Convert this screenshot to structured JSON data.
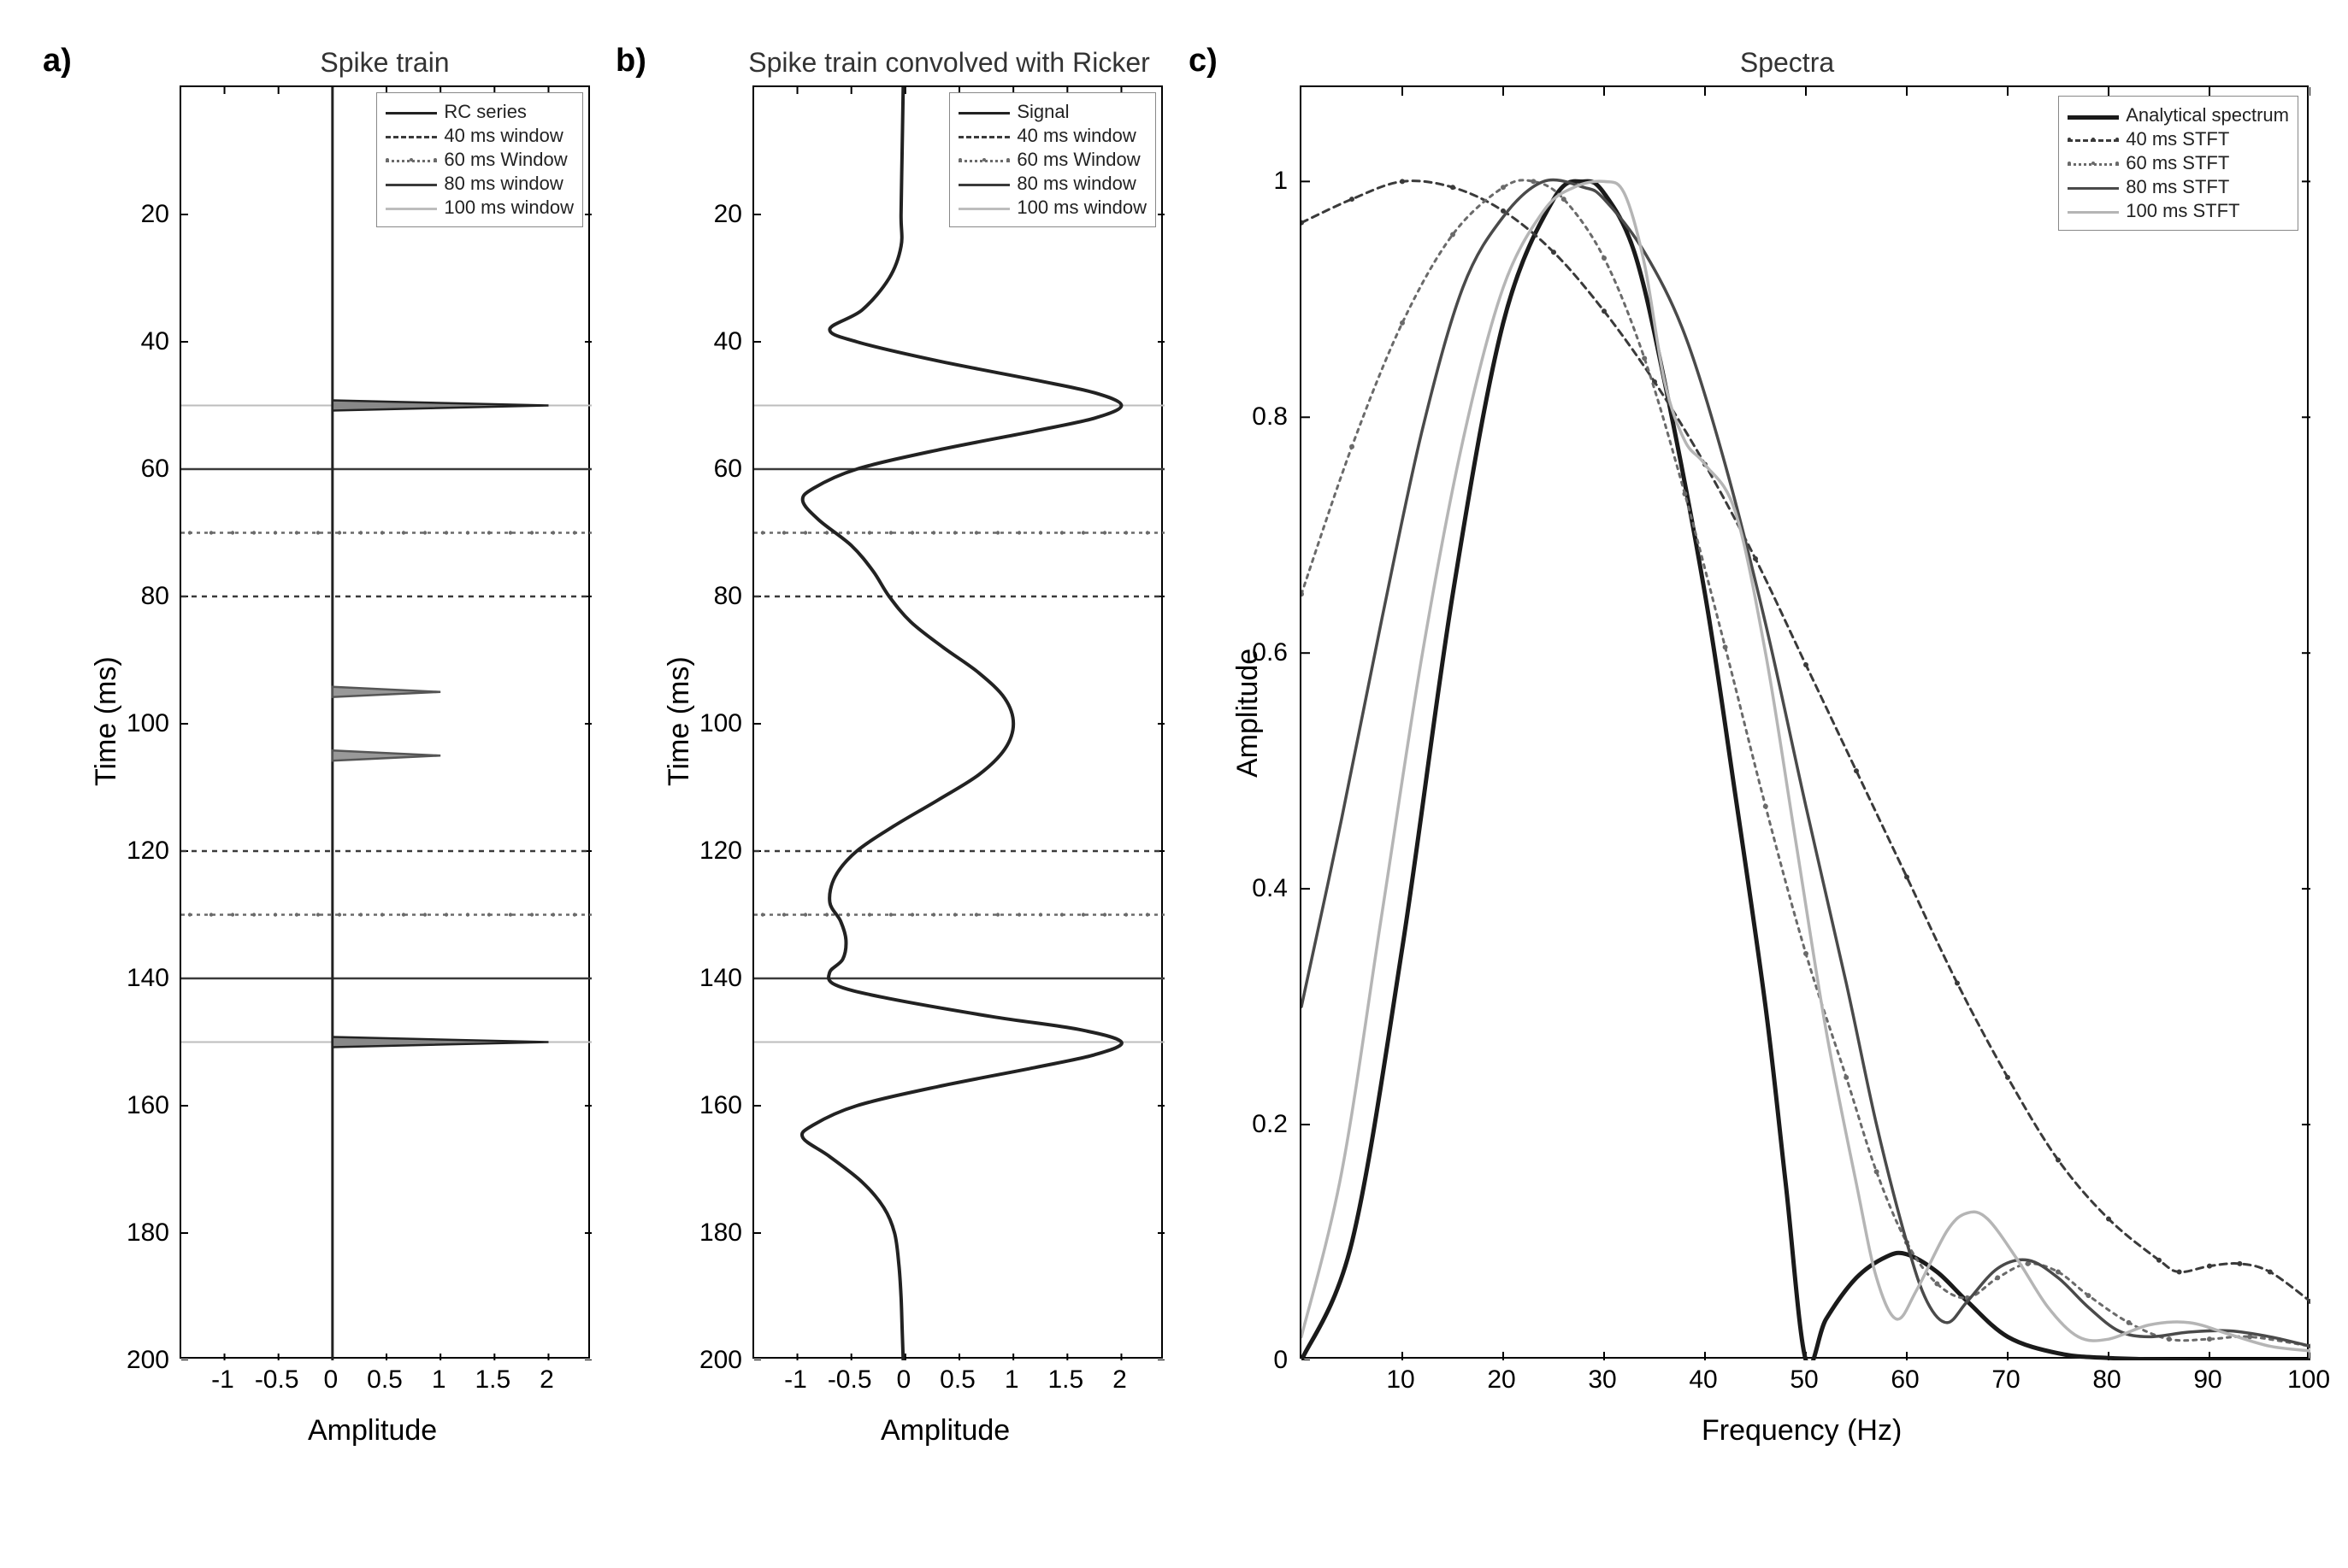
{
  "figure_width": 2746,
  "figure_height": 1835,
  "background_color": "#ffffff",
  "panel_a": {
    "label": "a)",
    "title": "Spike train",
    "xlabel": "Amplitude",
    "ylabel": "Time (ms)",
    "xlim": [
      -1.4,
      2.4
    ],
    "ylim": [
      200,
      0
    ],
    "xticks": [
      -1,
      -0.5,
      0,
      0.5,
      1,
      1.5,
      2
    ],
    "yticks": [
      20,
      40,
      60,
      80,
      100,
      120,
      140,
      160,
      180,
      200
    ],
    "axis_linewidth": 2,
    "tick_fontsize": 30,
    "label_fontsize": 34,
    "title_fontsize": 32,
    "baseline": {
      "x": 0,
      "color": "#222222",
      "width": 3
    },
    "spikes": [
      {
        "t": 50,
        "amp": 2.0,
        "color": "#222222",
        "fill": "#888888",
        "width": 2.5
      },
      {
        "t": 95,
        "amp": 1.0,
        "color": "#555555",
        "fill": "#999999",
        "width": 2.5
      },
      {
        "t": 105,
        "amp": 1.0,
        "color": "#555555",
        "fill": "#999999",
        "width": 2.5
      },
      {
        "t": 150,
        "amp": 2.0,
        "color": "#222222",
        "fill": "#888888",
        "width": 2.5
      }
    ],
    "windows": [
      {
        "t": 50,
        "color": "#bdbdbd",
        "dash": "none",
        "width": 2
      },
      {
        "t": 60,
        "color": "#3a3a3a",
        "dash": "none",
        "width": 2.5
      },
      {
        "t": 70,
        "color": "#6a6a6a",
        "dash": "4,5",
        "width": 2.5,
        "dots": true
      },
      {
        "t": 80,
        "color": "#3a3a3a",
        "dash": "6,6",
        "width": 2.5
      },
      {
        "t": 120,
        "color": "#3a3a3a",
        "dash": "6,6",
        "width": 2.5
      },
      {
        "t": 130,
        "color": "#6a6a6a",
        "dash": "4,5",
        "width": 2.5,
        "dots": true
      },
      {
        "t": 140,
        "color": "#3a3a3a",
        "dash": "none",
        "width": 2.5
      },
      {
        "t": 150,
        "color": "#bdbdbd",
        "dash": "none",
        "width": 2
      }
    ],
    "legend_items": [
      {
        "label": "RC series",
        "style": "solid",
        "color": "#222222"
      },
      {
        "label": "40 ms window",
        "style": "dashed",
        "color": "#3a3a3a"
      },
      {
        "label": "60 ms Window",
        "style": "dotmark",
        "color": "#6a6a6a"
      },
      {
        "label": "80 ms window",
        "style": "solid",
        "color": "#3a3a3a"
      },
      {
        "label": "100 ms window",
        "style": "solid",
        "color": "#bdbdbd"
      }
    ]
  },
  "panel_b": {
    "label": "b)",
    "title": "Spike train convolved with Ricker",
    "xlabel": "Amplitude",
    "ylabel": "Time (ms)",
    "xlim": [
      -1.4,
      2.4
    ],
    "ylim": [
      200,
      0
    ],
    "xticks": [
      -1,
      -0.5,
      0,
      0.5,
      1,
      1.5,
      2
    ],
    "yticks": [
      20,
      40,
      60,
      80,
      100,
      120,
      140,
      160,
      180,
      200
    ],
    "signal_color": "#222222",
    "signal_width": 4,
    "signal": [
      [
        0,
        -0.02
      ],
      [
        10,
        -0.03
      ],
      [
        20,
        -0.04
      ],
      [
        25,
        -0.04
      ],
      [
        30,
        -0.15
      ],
      [
        35,
        -0.4
      ],
      [
        38,
        -0.7
      ],
      [
        40,
        -0.45
      ],
      [
        43,
        0.3
      ],
      [
        46,
        1.2
      ],
      [
        48,
        1.75
      ],
      [
        50,
        2.0
      ],
      [
        52,
        1.75
      ],
      [
        54,
        1.2
      ],
      [
        57,
        0.3
      ],
      [
        60,
        -0.45
      ],
      [
        63,
        -0.85
      ],
      [
        65,
        -0.95
      ],
      [
        68,
        -0.8
      ],
      [
        72,
        -0.5
      ],
      [
        76,
        -0.3
      ],
      [
        80,
        -0.15
      ],
      [
        84,
        0.05
      ],
      [
        88,
        0.35
      ],
      [
        92,
        0.68
      ],
      [
        96,
        0.92
      ],
      [
        100,
        1.0
      ],
      [
        104,
        0.92
      ],
      [
        108,
        0.68
      ],
      [
        112,
        0.3
      ],
      [
        116,
        -0.1
      ],
      [
        120,
        -0.45
      ],
      [
        124,
        -0.65
      ],
      [
        128,
        -0.7
      ],
      [
        131,
        -0.6
      ],
      [
        134,
        -0.55
      ],
      [
        137,
        -0.58
      ],
      [
        139,
        -0.7
      ],
      [
        141,
        -0.65
      ],
      [
        143,
        -0.2
      ],
      [
        146,
        0.8
      ],
      [
        148,
        1.6
      ],
      [
        150,
        2.0
      ],
      [
        152,
        1.75
      ],
      [
        154,
        1.2
      ],
      [
        157,
        0.3
      ],
      [
        160,
        -0.45
      ],
      [
        163,
        -0.85
      ],
      [
        165,
        -0.95
      ],
      [
        168,
        -0.7
      ],
      [
        172,
        -0.4
      ],
      [
        176,
        -0.2
      ],
      [
        180,
        -0.1
      ],
      [
        185,
        -0.06
      ],
      [
        190,
        -0.04
      ],
      [
        195,
        -0.03
      ],
      [
        200,
        -0.02
      ]
    ],
    "windows": [
      {
        "t": 50,
        "color": "#bdbdbd",
        "dash": "none",
        "width": 2
      },
      {
        "t": 60,
        "color": "#3a3a3a",
        "dash": "none",
        "width": 2.5
      },
      {
        "t": 70,
        "color": "#6a6a6a",
        "dash": "4,5",
        "width": 2.5,
        "dots": true
      },
      {
        "t": 80,
        "color": "#3a3a3a",
        "dash": "6,6",
        "width": 2.5
      },
      {
        "t": 120,
        "color": "#3a3a3a",
        "dash": "6,6",
        "width": 2.5
      },
      {
        "t": 130,
        "color": "#6a6a6a",
        "dash": "4,5",
        "width": 2.5,
        "dots": true
      },
      {
        "t": 140,
        "color": "#3a3a3a",
        "dash": "none",
        "width": 2.5
      },
      {
        "t": 150,
        "color": "#bdbdbd",
        "dash": "none",
        "width": 2
      }
    ],
    "legend_items": [
      {
        "label": "Signal",
        "style": "solid",
        "color": "#222222"
      },
      {
        "label": "40 ms window",
        "style": "dashed",
        "color": "#3a3a3a"
      },
      {
        "label": "60 ms Window",
        "style": "dotmark",
        "color": "#6a6a6a"
      },
      {
        "label": "80 ms window",
        "style": "solid",
        "color": "#3a3a3a"
      },
      {
        "label": "100 ms window",
        "style": "solid",
        "color": "#bdbdbd"
      }
    ]
  },
  "panel_c": {
    "label": "c)",
    "title": "Spectra",
    "xlabel": "Frequency (Hz)",
    "ylabel": "Amplitude",
    "xlim": [
      0,
      100
    ],
    "ylim": [
      0,
      1.08
    ],
    "xticks": [
      10,
      20,
      30,
      40,
      50,
      60,
      70,
      80,
      90,
      100
    ],
    "yticks": [
      0,
      0.2,
      0.4,
      0.6,
      0.8,
      1
    ],
    "curves": [
      {
        "name": "Analytical spectrum",
        "color": "#1a1a1a",
        "width": 5,
        "dash": "none",
        "dots": false,
        "points": [
          [
            0,
            0.0
          ],
          [
            5,
            0.1
          ],
          [
            10,
            0.35
          ],
          [
            15,
            0.65
          ],
          [
            20,
            0.88
          ],
          [
            25,
            0.985
          ],
          [
            28,
            1.0
          ],
          [
            30,
            0.99
          ],
          [
            33,
            0.94
          ],
          [
            36,
            0.83
          ],
          [
            40,
            0.65
          ],
          [
            43,
            0.48
          ],
          [
            46,
            0.3
          ],
          [
            48,
            0.15
          ],
          [
            50,
            0.0
          ],
          [
            52,
            0.035
          ],
          [
            55,
            0.07
          ],
          [
            58,
            0.088
          ],
          [
            60,
            0.09
          ],
          [
            63,
            0.075
          ],
          [
            66,
            0.05
          ],
          [
            70,
            0.02
          ],
          [
            75,
            0.006
          ],
          [
            80,
            0.002
          ],
          [
            90,
            0.0
          ],
          [
            100,
            0.0
          ]
        ]
      },
      {
        "name": "40 ms STFT",
        "color": "#3a3a3a",
        "width": 3,
        "dash": "8,6",
        "dots": true,
        "points": [
          [
            0,
            0.965
          ],
          [
            5,
            0.985
          ],
          [
            10,
            1.0
          ],
          [
            15,
            0.995
          ],
          [
            20,
            0.975
          ],
          [
            25,
            0.94
          ],
          [
            30,
            0.89
          ],
          [
            35,
            0.83
          ],
          [
            40,
            0.76
          ],
          [
            45,
            0.68
          ],
          [
            50,
            0.59
          ],
          [
            55,
            0.5
          ],
          [
            60,
            0.41
          ],
          [
            65,
            0.32
          ],
          [
            70,
            0.24
          ],
          [
            75,
            0.17
          ],
          [
            80,
            0.12
          ],
          [
            85,
            0.085
          ],
          [
            87,
            0.075
          ],
          [
            90,
            0.08
          ],
          [
            93,
            0.082
          ],
          [
            96,
            0.075
          ],
          [
            100,
            0.05
          ]
        ]
      },
      {
        "name": "60 ms STFT",
        "color": "#6a6a6a",
        "width": 3,
        "dash": "4,6",
        "dots": true,
        "points": [
          [
            0,
            0.65
          ],
          [
            5,
            0.775
          ],
          [
            10,
            0.88
          ],
          [
            15,
            0.955
          ],
          [
            20,
            0.995
          ],
          [
            23,
            1.0
          ],
          [
            26,
            0.985
          ],
          [
            30,
            0.935
          ],
          [
            34,
            0.85
          ],
          [
            38,
            0.735
          ],
          [
            42,
            0.605
          ],
          [
            46,
            0.47
          ],
          [
            50,
            0.345
          ],
          [
            54,
            0.24
          ],
          [
            57,
            0.16
          ],
          [
            60,
            0.1
          ],
          [
            63,
            0.065
          ],
          [
            66,
            0.053
          ],
          [
            69,
            0.07
          ],
          [
            72,
            0.082
          ],
          [
            75,
            0.075
          ],
          [
            78,
            0.055
          ],
          [
            82,
            0.032
          ],
          [
            86,
            0.018
          ],
          [
            90,
            0.018
          ],
          [
            94,
            0.02
          ],
          [
            100,
            0.012
          ]
        ]
      },
      {
        "name": "80 ms STFT",
        "color": "#4a4a4a",
        "width": 3.5,
        "dash": "none",
        "dots": false,
        "points": [
          [
            0,
            0.3
          ],
          [
            4,
            0.46
          ],
          [
            8,
            0.63
          ],
          [
            12,
            0.79
          ],
          [
            16,
            0.91
          ],
          [
            20,
            0.97
          ],
          [
            24,
            1.0
          ],
          [
            28,
            0.995
          ],
          [
            30,
            0.985
          ],
          [
            34,
            0.94
          ],
          [
            38,
            0.87
          ],
          [
            42,
            0.76
          ],
          [
            46,
            0.625
          ],
          [
            50,
            0.47
          ],
          [
            54,
            0.32
          ],
          [
            57,
            0.2
          ],
          [
            60,
            0.1
          ],
          [
            62,
            0.05
          ],
          [
            64,
            0.032
          ],
          [
            66,
            0.05
          ],
          [
            69,
            0.078
          ],
          [
            72,
            0.085
          ],
          [
            75,
            0.07
          ],
          [
            78,
            0.045
          ],
          [
            81,
            0.025
          ],
          [
            84,
            0.02
          ],
          [
            88,
            0.024
          ],
          [
            92,
            0.025
          ],
          [
            96,
            0.02
          ],
          [
            100,
            0.012
          ]
        ]
      },
      {
        "name": "100 ms STFT",
        "color": "#b5b5b5",
        "width": 3.5,
        "dash": "none",
        "dots": false,
        "points": [
          [
            0,
            0.02
          ],
          [
            4,
            0.16
          ],
          [
            8,
            0.38
          ],
          [
            12,
            0.6
          ],
          [
            16,
            0.78
          ],
          [
            20,
            0.91
          ],
          [
            24,
            0.975
          ],
          [
            27,
            0.995
          ],
          [
            30,
            1.0
          ],
          [
            32,
            0.99
          ],
          [
            34,
            0.93
          ],
          [
            36,
            0.83
          ],
          [
            38,
            0.78
          ],
          [
            40,
            0.76
          ],
          [
            43,
            0.72
          ],
          [
            46,
            0.6
          ],
          [
            49,
            0.44
          ],
          [
            52,
            0.28
          ],
          [
            55,
            0.15
          ],
          [
            57,
            0.07
          ],
          [
            59,
            0.035
          ],
          [
            61,
            0.06
          ],
          [
            64,
            0.11
          ],
          [
            66,
            0.125
          ],
          [
            68,
            0.12
          ],
          [
            71,
            0.085
          ],
          [
            74,
            0.045
          ],
          [
            77,
            0.02
          ],
          [
            80,
            0.018
          ],
          [
            84,
            0.03
          ],
          [
            88,
            0.032
          ],
          [
            92,
            0.022
          ],
          [
            96,
            0.012
          ],
          [
            100,
            0.008
          ]
        ]
      }
    ],
    "legend_items": [
      {
        "label": "Analytical spectrum",
        "style": "solid",
        "color": "#1a1a1a",
        "bold": true
      },
      {
        "label": "40 ms STFT",
        "style": "dashdot",
        "color": "#3a3a3a"
      },
      {
        "label": "60 ms STFT",
        "style": "dotmark",
        "color": "#6a6a6a"
      },
      {
        "label": "80 ms STFT",
        "style": "solid",
        "color": "#4a4a4a"
      },
      {
        "label": "100 ms STFT",
        "style": "solid",
        "color": "#b5b5b5"
      }
    ]
  }
}
